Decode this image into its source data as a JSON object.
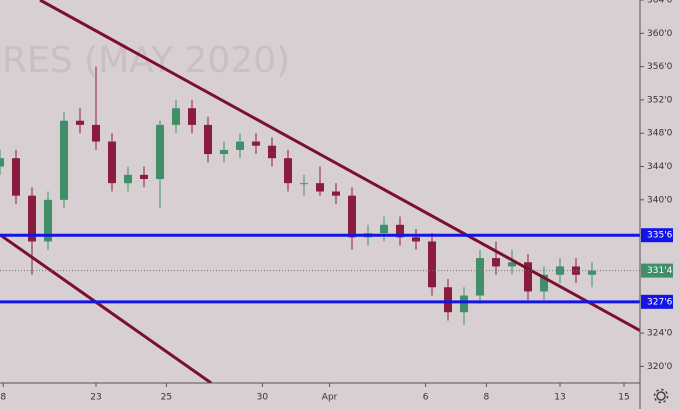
{
  "chart_data": {
    "type": "candlestick",
    "watermark": "RES (MAY 2020)",
    "x": [
      0,
      0.5,
      1,
      1.5,
      2,
      2.5,
      3,
      3.5,
      4,
      4.5,
      5,
      5.5,
      6,
      6.5,
      7,
      7.5,
      8,
      8.5,
      9,
      9.5,
      10,
      10.5,
      11,
      11.5,
      12,
      12.5,
      13,
      13.5,
      14,
      14.5,
      15,
      15.5,
      16,
      16.5,
      17,
      17.5,
      18,
      18.5
    ],
    "open": [
      344,
      345,
      340.5,
      335,
      340,
      349.5,
      349,
      347,
      342,
      343,
      342.5,
      349,
      351,
      349,
      345.5,
      346,
      347,
      346.5,
      345,
      342,
      342,
      341,
      340.5,
      335.5,
      336,
      337,
      335.5,
      335,
      329.5,
      326.5,
      328.5,
      333,
      332,
      332.5,
      329,
      331,
      332,
      331
    ],
    "high": [
      346,
      346,
      341.5,
      341,
      350.5,
      351,
      356,
      348,
      344,
      344,
      349.5,
      352,
      352,
      350,
      347,
      348,
      348,
      347.5,
      346,
      343,
      344,
      342,
      341.5,
      337,
      338,
      338,
      336.5,
      336,
      330.5,
      329.5,
      334,
      335,
      334,
      333.5,
      332,
      333,
      333,
      332.5
    ],
    "low": [
      343,
      339.5,
      331,
      334,
      339,
      348,
      346,
      341,
      341,
      341.5,
      339,
      348,
      348,
      344.5,
      344.5,
      345,
      345.5,
      344,
      341,
      340.5,
      340.5,
      339.5,
      334,
      334.5,
      335,
      334.5,
      334,
      328.5,
      325.5,
      325,
      327.5,
      331,
      331,
      328,
      328,
      330,
      330,
      329.5
    ],
    "close": [
      345,
      340.5,
      335,
      340,
      349.5,
      349,
      347,
      342,
      343,
      342.5,
      349,
      351,
      349,
      345.5,
      346,
      347,
      346.5,
      345,
      342,
      342,
      341,
      340.5,
      335.5,
      336,
      337,
      335.5,
      335,
      329.5,
      326.5,
      328.5,
      333,
      332,
      332.5,
      329,
      331,
      332,
      331,
      331.5
    ],
    "up_color": "#3f9068",
    "down_color": "#8a1c3e",
    "xlim": [
      0,
      20
    ],
    "ylim": [
      318,
      364
    ],
    "xticks": [
      {
        "value": 0.1,
        "label": "8"
      },
      {
        "value": 3,
        "label": "23"
      },
      {
        "value": 5.2,
        "label": "25"
      },
      {
        "value": 8.2,
        "label": "30"
      },
      {
        "value": 10.3,
        "label": "Apr"
      },
      {
        "value": 13.3,
        "label": "6"
      },
      {
        "value": 15.2,
        "label": "8"
      },
      {
        "value": 17.5,
        "label": "13"
      },
      {
        "value": 19.5,
        "label": "15"
      }
    ],
    "yticks": [
      {
        "value": 364,
        "label": "364'0"
      },
      {
        "value": 360,
        "label": "360'0"
      },
      {
        "value": 356,
        "label": "356'0"
      },
      {
        "value": 352,
        "label": "352'0"
      },
      {
        "value": 348,
        "label": "348'0"
      },
      {
        "value": 344,
        "label": "344'0"
      },
      {
        "value": 340,
        "label": "340'0"
      },
      {
        "value": 324,
        "label": "324'0"
      },
      {
        "value": 320,
        "label": "320'0"
      }
    ],
    "hlines": [
      {
        "value": 335.75,
        "label": "335'6",
        "color": "#1414e6"
      },
      {
        "value": 327.75,
        "label": "327'6",
        "color": "#1414e6"
      }
    ],
    "last_price": {
      "value": 331.5,
      "label": "331'4",
      "color": "#3f9068"
    },
    "trendlines": [
      {
        "x": [
          1.25,
          20
        ],
        "y": [
          364,
          324.3
        ],
        "color": "#7a1030"
      },
      {
        "x": [
          0,
          6.6
        ],
        "y": [
          335.8,
          318
        ],
        "color": "#7a1030"
      }
    ]
  }
}
